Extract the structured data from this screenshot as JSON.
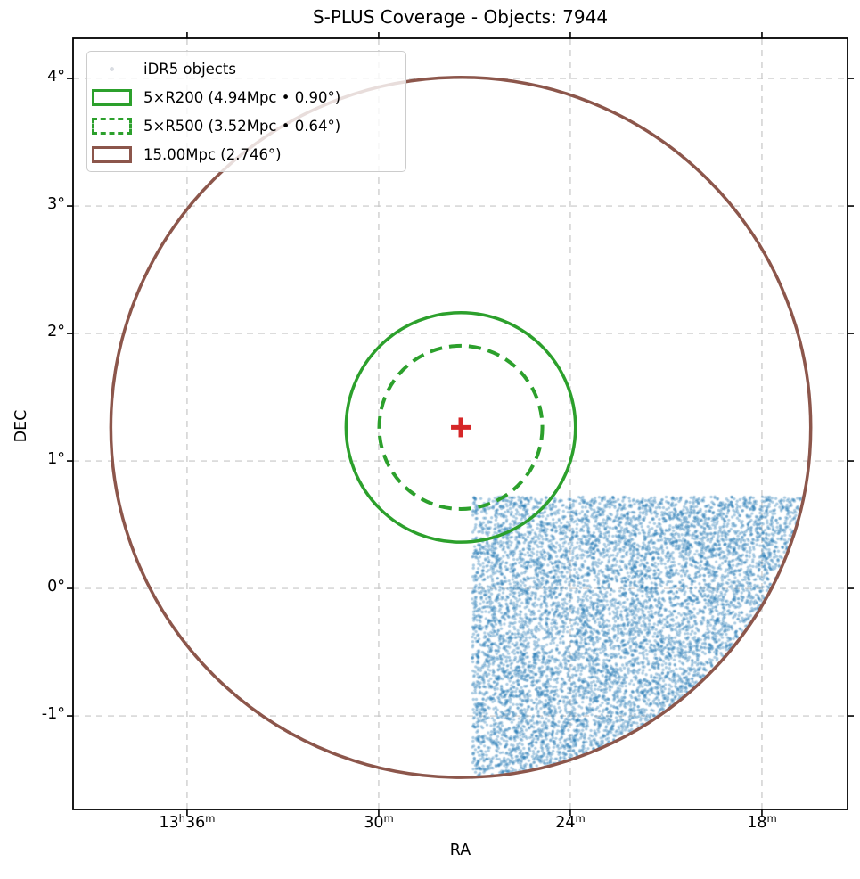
{
  "title": "S-PLUS Coverage - Objects: 7944",
  "chart_data": {
    "type": "scatter",
    "title": "S-PLUS Coverage - Objects: 7944",
    "xlabel": "RA",
    "ylabel": "DEC",
    "grid": true,
    "legend_position": "upper left",
    "x_axis": {
      "label": "RA",
      "direction": "RA decreases to the right",
      "range_minutes": [
        39.57,
        15.32
      ],
      "ticks": [
        {
          "minutes": 36,
          "parts": [
            {
              "t": "13",
              "sup": false
            },
            {
              "t": "h",
              "sup": true
            },
            {
              "t": "36",
              "sup": false
            },
            {
              "t": "m",
              "sup": true
            }
          ]
        },
        {
          "minutes": 30,
          "parts": [
            {
              "t": "30",
              "sup": false
            },
            {
              "t": "m",
              "sup": true
            }
          ]
        },
        {
          "minutes": 24,
          "parts": [
            {
              "t": "24",
              "sup": false
            },
            {
              "t": "m",
              "sup": true
            }
          ]
        },
        {
          "minutes": 18,
          "parts": [
            {
              "t": "18",
              "sup": false
            },
            {
              "t": "m",
              "sup": true
            }
          ]
        }
      ]
    },
    "y_axis": {
      "label": "DEC",
      "range_deg": [
        -1.734,
        4.315
      ],
      "ticks": [
        {
          "deg": 4,
          "label": "4°"
        },
        {
          "deg": 3,
          "label": "3°"
        },
        {
          "deg": 2,
          "label": "2°"
        },
        {
          "deg": 1,
          "label": "1°"
        },
        {
          "deg": 0,
          "label": "0°"
        },
        {
          "deg": -1,
          "label": "-1°"
        }
      ]
    },
    "center_marker": {
      "symbol": "+",
      "color": "#d62728",
      "ra": "13h27.4m",
      "ra_minutes": 27.43,
      "dec_deg": 1.263
    },
    "circles": [
      {
        "name": "5xR200",
        "label": "5×R200 (4.94Mpc • 0.90°)",
        "radius_mpc": 4.94,
        "radius_deg": 0.9,
        "line_style": "solid",
        "color": "#2ca02c"
      },
      {
        "name": "5xR500",
        "label": "5×R500 (3.52Mpc • 0.64°)",
        "radius_mpc": 3.52,
        "radius_deg": 0.64,
        "line_style": "dashed",
        "color": "#2ca02c"
      },
      {
        "name": "15Mpc",
        "label": "15.00Mpc (2.746°)",
        "radius_mpc": 15.0,
        "radius_deg": 2.746,
        "line_style": "solid",
        "color": "#8c564b"
      }
    ],
    "scatter": {
      "label": "iDR5 objects",
      "count": 7944,
      "color": "#1f77b4",
      "alpha": 0.38,
      "marker_radius_px": 1.7,
      "seed": 20240613,
      "region": {
        "description": "uniform footprint: RA <= 13h27.1m, DEC <= 0.72°, clipped inside the 15.00 Mpc circle",
        "ra_max_minutes": 27.07,
        "dec_max_deg": 0.719
      }
    }
  },
  "legend": {
    "items": [
      {
        "label": "iDR5 objects"
      },
      {
        "label": "5×R200 (4.94Mpc • 0.90°)"
      },
      {
        "label": "5×R500 (3.52Mpc • 0.64°)"
      },
      {
        "label": "15.00Mpc (2.746°)"
      }
    ]
  },
  "colors": {
    "green": "#2ca02c",
    "brown": "#8c564b",
    "red": "#d62728",
    "scatter_blue": "#1f77b4",
    "grid": "#c6c6c6",
    "spine": "#000000",
    "legend_dot": "#d9dce2"
  }
}
